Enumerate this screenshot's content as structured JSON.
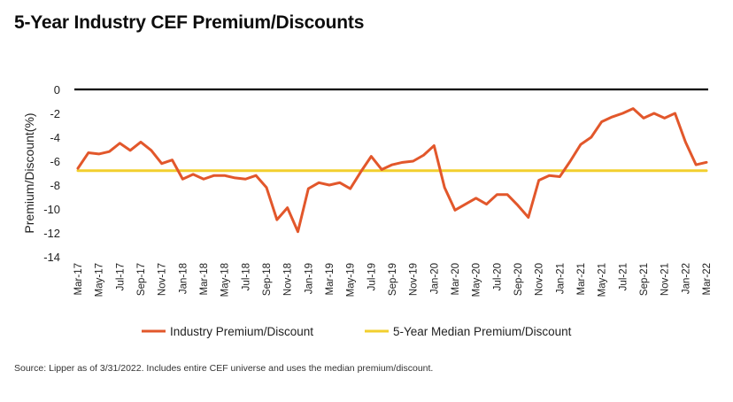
{
  "title": "5-Year Industry CEF Premium/Discounts",
  "source": "Source: Lipper as of 3/31/2022. Includes entire CEF universe and uses the median premium/discount.",
  "colors": {
    "series_line": "#e2572b",
    "median_line": "#f2cf2e",
    "zero_line": "#000000"
  },
  "chart_data": {
    "type": "line",
    "title": "5-Year Industry CEF Premium/Discounts",
    "xlabel": "",
    "ylabel": "Premium/Discount(%)",
    "ylim": [
      -14,
      0
    ],
    "yticks": [
      0,
      -2,
      -4,
      -6,
      -8,
      -10,
      -12,
      -14
    ],
    "grid": false,
    "legend_position": "bottom",
    "categories": [
      "Mar-17",
      "Apr-17",
      "May-17",
      "Jun-17",
      "Jul-17",
      "Aug-17",
      "Sep-17",
      "Oct-17",
      "Nov-17",
      "Dec-17",
      "Jan-18",
      "Feb-18",
      "Mar-18",
      "Apr-18",
      "May-18",
      "Jun-18",
      "Jul-18",
      "Aug-18",
      "Sep-18",
      "Oct-18",
      "Nov-18",
      "Dec-18",
      "Jan-19",
      "Feb-19",
      "Mar-19",
      "Apr-19",
      "May-19",
      "Jun-19",
      "Jul-19",
      "Aug-19",
      "Sep-19",
      "Oct-19",
      "Nov-19",
      "Dec-19",
      "Jan-20",
      "Feb-20",
      "Mar-20",
      "Apr-20",
      "May-20",
      "Jun-20",
      "Jul-20",
      "Aug-20",
      "Sep-20",
      "Oct-20",
      "Nov-20",
      "Dec-20",
      "Jan-21",
      "Feb-21",
      "Mar-21",
      "Apr-21",
      "May-21",
      "Jun-21",
      "Jul-21",
      "Aug-21",
      "Sep-21",
      "Oct-21",
      "Nov-21",
      "Dec-21",
      "Jan-22",
      "Feb-22",
      "Mar-22"
    ],
    "xtick_labels": [
      "Mar-17",
      "May-17",
      "Jul-17",
      "Sep-17",
      "Nov-17",
      "Jan-18",
      "Mar-18",
      "May-18",
      "Jul-18",
      "Sep-18",
      "Nov-18",
      "Jan-19",
      "Mar-19",
      "May-19",
      "Jul-19",
      "Sep-19",
      "Nov-19",
      "Jan-20",
      "Mar-20",
      "May-20",
      "Jul-20",
      "Sep-20",
      "Nov-20",
      "Jan-21",
      "Mar-21",
      "May-21",
      "Jul-21",
      "Sep-21",
      "Nov-21",
      "Jan-22",
      "Mar-22"
    ],
    "series": [
      {
        "name": "Industry Premium/Discount",
        "values": [
          -6.6,
          -5.3,
          -5.4,
          -5.2,
          -4.5,
          -5.1,
          -4.4,
          -5.1,
          -6.2,
          -5.9,
          -7.5,
          -7.1,
          -7.5,
          -7.2,
          -7.2,
          -7.4,
          -7.5,
          -7.2,
          -8.2,
          -10.9,
          -9.9,
          -11.9,
          -8.3,
          -7.8,
          -8.0,
          -7.8,
          -8.3,
          -6.9,
          -5.6,
          -6.7,
          -6.3,
          -6.1,
          -6.0,
          -5.5,
          -4.7,
          -8.2,
          -10.1,
          -9.6,
          -9.1,
          -9.6,
          -8.8,
          -8.8,
          -9.7,
          -10.7,
          -7.6,
          -7.2,
          -7.3,
          -6.0,
          -4.6,
          -4.0,
          -2.7,
          -2.3,
          -2.0,
          -1.6,
          -2.4,
          -2.0,
          -2.4,
          -2.0,
          -4.4,
          -6.3,
          -6.1
        ]
      },
      {
        "name": "5-Year Median Premium/Discount",
        "values": [
          -6.8,
          -6.8,
          -6.8,
          -6.8,
          -6.8,
          -6.8,
          -6.8,
          -6.8,
          -6.8,
          -6.8,
          -6.8,
          -6.8,
          -6.8,
          -6.8,
          -6.8,
          -6.8,
          -6.8,
          -6.8,
          -6.8,
          -6.8,
          -6.8,
          -6.8,
          -6.8,
          -6.8,
          -6.8,
          -6.8,
          -6.8,
          -6.8,
          -6.8,
          -6.8,
          -6.8,
          -6.8,
          -6.8,
          -6.8,
          -6.8,
          -6.8,
          -6.8,
          -6.8,
          -6.8,
          -6.8,
          -6.8,
          -6.8,
          -6.8,
          -6.8,
          -6.8,
          -6.8,
          -6.8,
          -6.8,
          -6.8,
          -6.8,
          -6.8,
          -6.8,
          -6.8,
          -6.8,
          -6.8,
          -6.8,
          -6.8,
          -6.8,
          -6.8,
          -6.8,
          -6.8
        ]
      }
    ],
    "legend": [
      "Industry Premium/Discount",
      "5-Year Median Premium/Discount"
    ]
  }
}
